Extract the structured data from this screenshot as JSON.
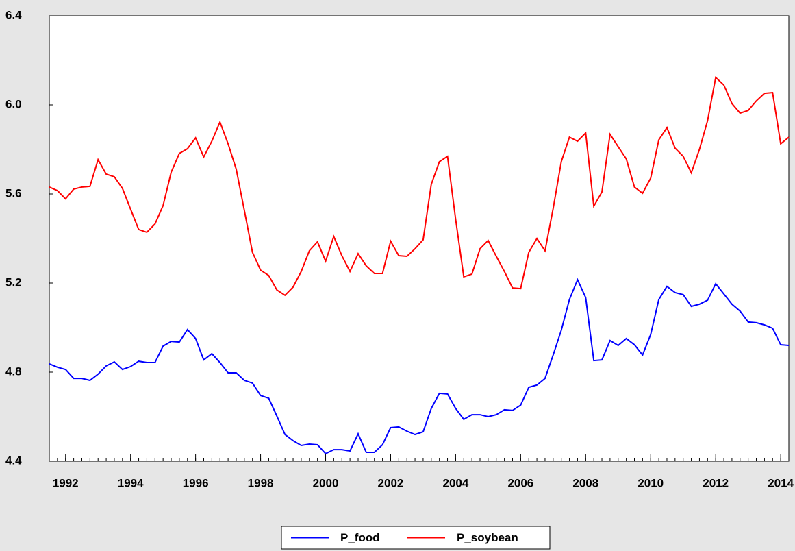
{
  "chart_data": {
    "type": "line",
    "x": [
      1992,
      1992.25,
      1992.5,
      1992.75,
      1993,
      1993.25,
      1993.5,
      1993.75,
      1994,
      1994.25,
      1994.5,
      1994.75,
      1995,
      1995.25,
      1995.5,
      1995.75,
      1996,
      1996.25,
      1996.5,
      1996.75,
      1997,
      1997.25,
      1997.5,
      1997.75,
      1998,
      1998.25,
      1998.5,
      1998.75,
      1999,
      1999.25,
      1999.5,
      1999.75,
      2000,
      2000.25,
      2000.5,
      2000.75,
      2001,
      2001.25,
      2001.5,
      2001.75,
      2002,
      2002.25,
      2002.5,
      2002.75,
      2003,
      2003.25,
      2003.5,
      2003.75,
      2004,
      2004.25,
      2004.5,
      2004.75,
      2005,
      2005.25,
      2005.5,
      2005.75,
      2006,
      2006.25,
      2006.5,
      2006.75,
      2007,
      2007.25,
      2007.5,
      2007.75,
      2008,
      2008.25,
      2008.5,
      2008.75,
      2009,
      2009.25,
      2009.5,
      2009.75,
      2010,
      2010.25,
      2010.5,
      2010.75,
      2011,
      2011.25,
      2011.5,
      2011.75,
      2012,
      2012.25,
      2012.5,
      2012.75,
      2013,
      2013.25,
      2013.5,
      2013.75,
      2014,
      2014.25,
      2014.5,
      2014.75
    ],
    "series": [
      {
        "name": "P_food",
        "color": "#0000ff",
        "values": [
          4.837,
          4.822,
          4.812,
          4.772,
          4.772,
          4.763,
          4.791,
          4.828,
          4.846,
          4.812,
          4.825,
          4.849,
          4.843,
          4.843,
          4.917,
          4.938,
          4.935,
          4.991,
          4.951,
          4.855,
          4.883,
          4.843,
          4.797,
          4.797,
          4.763,
          4.751,
          4.695,
          4.683,
          4.603,
          4.52,
          4.492,
          4.471,
          4.477,
          4.474,
          4.434,
          4.452,
          4.452,
          4.446,
          4.523,
          4.44,
          4.44,
          4.474,
          4.551,
          4.554,
          4.535,
          4.52,
          4.532,
          4.637,
          4.705,
          4.702,
          4.637,
          4.588,
          4.609,
          4.609,
          4.6,
          4.609,
          4.631,
          4.628,
          4.652,
          4.732,
          4.742,
          4.772,
          4.877,
          4.988,
          5.126,
          5.215,
          5.135,
          4.852,
          4.855,
          4.942,
          4.92,
          4.951,
          4.923,
          4.877,
          4.969,
          5.126,
          5.185,
          5.157,
          5.148,
          5.095,
          5.105,
          5.123,
          5.197,
          5.151,
          5.105,
          5.074,
          5.025,
          5.022,
          5.012,
          4.997,
          4.923,
          4.92
        ]
      },
      {
        "name": "P_soybean",
        "color": "#ff0000",
        "values": [
          5.631,
          5.615,
          5.578,
          5.622,
          5.631,
          5.634,
          5.754,
          5.689,
          5.677,
          5.625,
          5.532,
          5.44,
          5.428,
          5.465,
          5.548,
          5.698,
          5.782,
          5.803,
          5.852,
          5.766,
          5.837,
          5.923,
          5.825,
          5.711,
          5.526,
          5.338,
          5.258,
          5.234,
          5.169,
          5.145,
          5.182,
          5.252,
          5.345,
          5.385,
          5.298,
          5.409,
          5.323,
          5.252,
          5.332,
          5.277,
          5.243,
          5.243,
          5.388,
          5.323,
          5.32,
          5.354,
          5.394,
          5.643,
          5.745,
          5.769,
          5.486,
          5.228,
          5.24,
          5.354,
          5.391,
          5.32,
          5.252,
          5.178,
          5.175,
          5.338,
          5.4,
          5.345,
          5.535,
          5.745,
          5.855,
          5.837,
          5.874,
          5.545,
          5.609,
          5.868,
          5.812,
          5.757,
          5.631,
          5.603,
          5.671,
          5.843,
          5.898,
          5.806,
          5.769,
          5.695,
          5.8,
          5.929,
          6.123,
          6.089,
          6.006,
          5.963,
          5.975,
          6.018,
          6.052,
          6.055,
          5.825,
          5.855
        ]
      }
    ],
    "xlim": [
      1992,
      2014.75
    ],
    "xticks": [
      {
        "value": 1992.5,
        "label": "1992"
      },
      {
        "value": 1994.5,
        "label": "1994"
      },
      {
        "value": 1996.5,
        "label": "1996"
      },
      {
        "value": 1998.5,
        "label": "1998"
      },
      {
        "value": 2000.5,
        "label": "2000"
      },
      {
        "value": 2002.5,
        "label": "2002"
      },
      {
        "value": 2004.5,
        "label": "2004"
      },
      {
        "value": 2006.5,
        "label": "2006"
      },
      {
        "value": 2008.5,
        "label": "2008"
      },
      {
        "value": 2010.5,
        "label": "2010"
      },
      {
        "value": 2012.5,
        "label": "2012"
      },
      {
        "value": 2014.5,
        "label": "2014"
      }
    ],
    "ylim": [
      4.4,
      6.4
    ],
    "yticks": [
      4.4,
      4.8,
      5.2,
      5.6,
      {
        "value": 6,
        "label": "6.0"
      },
      6.4
    ],
    "grid": false,
    "legend": "bottom"
  }
}
